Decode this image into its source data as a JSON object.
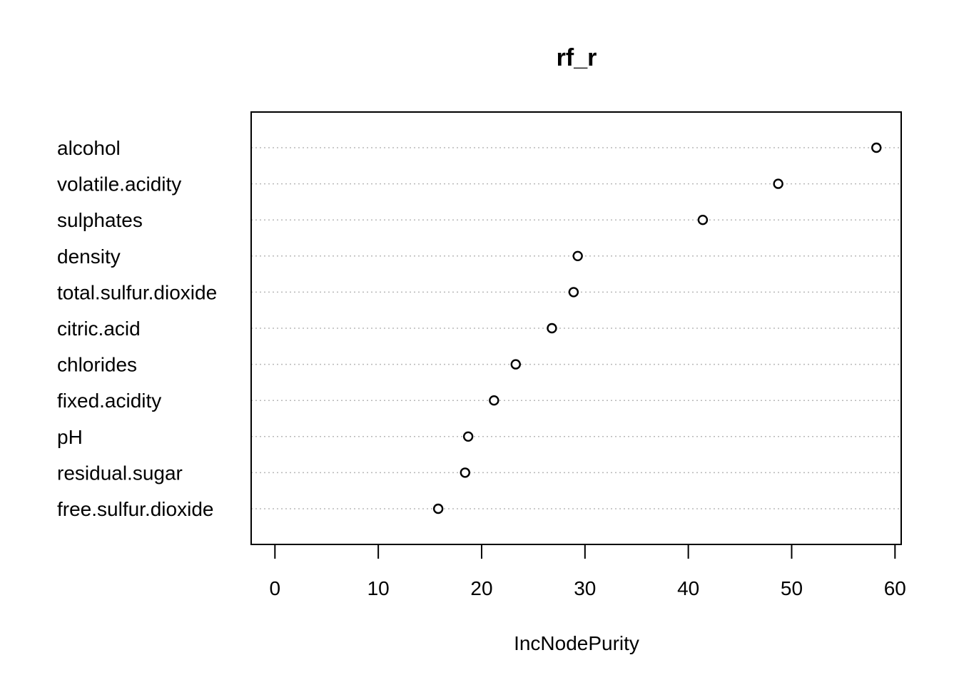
{
  "chart_data": {
    "type": "scatter",
    "title": "rf_r",
    "xlabel": "IncNodePurity",
    "ylabel": "",
    "xlim": [
      -2.3,
      60.6
    ],
    "x_ticks": [
      0,
      10,
      20,
      30,
      40,
      50,
      60
    ],
    "grid": "horizontal dotted",
    "legend": "none",
    "categories": [
      "alcohol",
      "volatile.acidity",
      "sulphates",
      "density",
      "total.sulfur.dioxide",
      "citric.acid",
      "chlorides",
      "fixed.acidity",
      "pH",
      "residual.sugar",
      "free.sulfur.dioxide"
    ],
    "values": [
      58.2,
      48.7,
      41.4,
      29.3,
      28.9,
      26.8,
      23.3,
      21.2,
      18.7,
      18.4,
      15.8
    ]
  }
}
